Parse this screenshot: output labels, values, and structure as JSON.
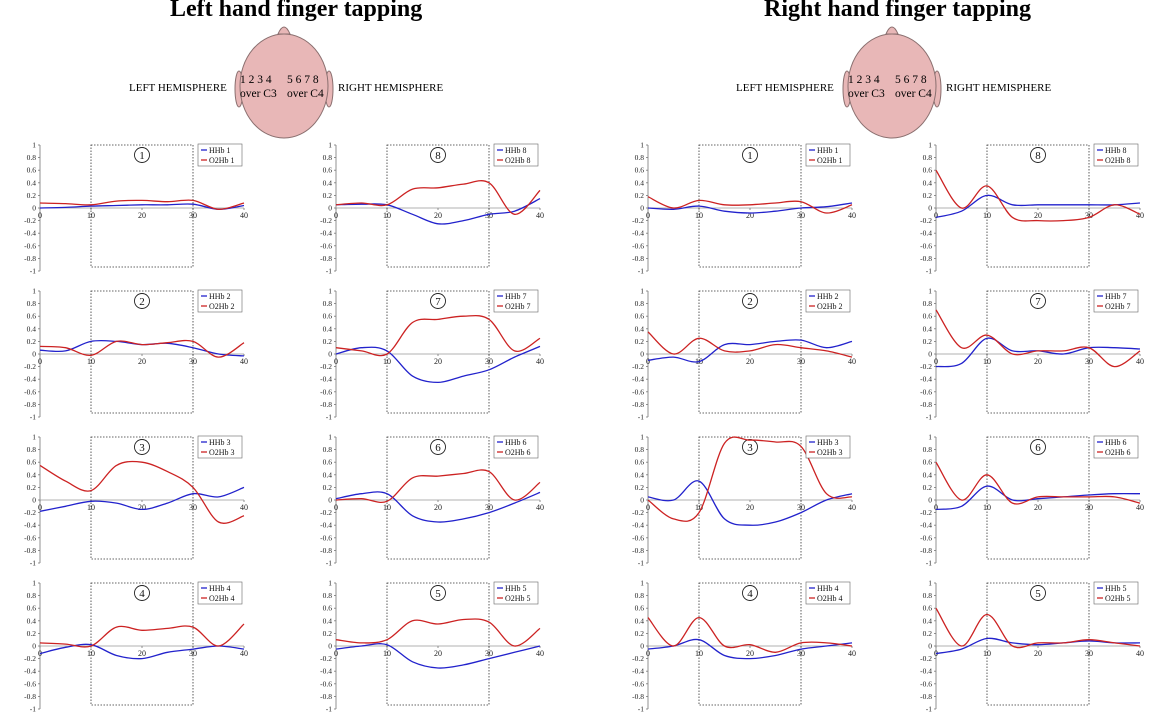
{
  "titles": [
    "Left hand finger tapping",
    "Right hand finger tapping"
  ],
  "head_diagram": {
    "left_label": "LEFT HEMISPHERE",
    "right_label": "RIGHT HEMISPHERE",
    "left_channels": "1 2 3 4",
    "right_channels": "5 6 7 8",
    "left_site": "over C3",
    "right_site": "over C4"
  },
  "colors": {
    "hhb": "#2222cc",
    "o2hb": "#cc2222",
    "head_fill": "#e8b7b7",
    "head_stroke": "#8a6f6f",
    "box": "#333333",
    "zero_line": "#999999"
  },
  "chart_data": [
    {
      "panel": "left",
      "type": "line",
      "channel": "1",
      "x": [
        0,
        5,
        10,
        15,
        20,
        25,
        30,
        35,
        40
      ],
      "xlim": [
        0,
        40
      ],
      "ylim": [
        -1,
        1
      ],
      "yticks": [
        "1",
        "0.8",
        "0.6",
        "0.4",
        "0.2",
        "0",
        "-0.2",
        "-0.4",
        "-0.6",
        "-0.8",
        "-1"
      ],
      "xticks": [
        "0",
        "10",
        "20",
        "30",
        "40"
      ],
      "shaded": [
        10,
        30
      ],
      "series": [
        {
          "name": "HHb 1",
          "values": [
            0.0,
            0.01,
            0.03,
            0.04,
            0.05,
            0.05,
            0.06,
            -0.02,
            0.04
          ]
        },
        {
          "name": "O2Hb 1",
          "values": [
            0.08,
            0.07,
            0.05,
            0.11,
            0.12,
            0.1,
            0.12,
            -0.02,
            0.08
          ]
        }
      ]
    },
    {
      "panel": "left",
      "type": "line",
      "channel": "2",
      "x": [
        0,
        5,
        10,
        15,
        20,
        25,
        30,
        35,
        40
      ],
      "xlim": [
        0,
        40
      ],
      "ylim": [
        -1,
        1
      ],
      "yticks": [
        "1",
        "0.8",
        "0.6",
        "0.4",
        "0.2",
        "0",
        "-0.2",
        "-0.4",
        "-0.6",
        "-0.8",
        "-1"
      ],
      "xticks": [
        "0",
        "10",
        "20",
        "30",
        "40"
      ],
      "shaded": [
        10,
        30
      ],
      "series": [
        {
          "name": "HHb 2",
          "values": [
            0.06,
            0.05,
            0.2,
            0.2,
            0.15,
            0.17,
            0.1,
            0.0,
            -0.03
          ]
        },
        {
          "name": "O2Hb 2",
          "values": [
            0.12,
            0.1,
            -0.02,
            0.2,
            0.15,
            0.18,
            0.2,
            -0.05,
            0.18
          ]
        }
      ]
    },
    {
      "panel": "left",
      "type": "line",
      "channel": "3",
      "x": [
        0,
        5,
        10,
        15,
        20,
        25,
        30,
        35,
        40
      ],
      "xlim": [
        0,
        40
      ],
      "ylim": [
        -1,
        1
      ],
      "yticks": [
        "1",
        "0.8",
        "0.6",
        "0.4",
        "0.2",
        "0",
        "-0.2",
        "-0.4",
        "-0.6",
        "-0.8",
        "-1"
      ],
      "xticks": [
        "0",
        "10",
        "20",
        "30",
        "40"
      ],
      "shaded": [
        10,
        30
      ],
      "series": [
        {
          "name": "HHb 3",
          "values": [
            -0.18,
            -0.1,
            -0.02,
            -0.05,
            -0.15,
            -0.05,
            0.1,
            0.05,
            0.2
          ]
        },
        {
          "name": "O2Hb 3",
          "values": [
            0.55,
            0.3,
            0.15,
            0.55,
            0.6,
            0.45,
            0.2,
            -0.35,
            -0.25
          ]
        }
      ]
    },
    {
      "panel": "left",
      "type": "line",
      "channel": "4",
      "x": [
        0,
        5,
        10,
        15,
        20,
        25,
        30,
        35,
        40
      ],
      "xlim": [
        0,
        40
      ],
      "ylim": [
        -1,
        1
      ],
      "yticks": [
        "1",
        "0.8",
        "0.6",
        "0.4",
        "0.2",
        "0",
        "-0.2",
        "-0.4",
        "-0.6",
        "-0.8",
        "-1"
      ],
      "xticks": [
        "0",
        "10",
        "20",
        "30",
        "40"
      ],
      "shaded": [
        10,
        30
      ],
      "series": [
        {
          "name": "HHb 4",
          "values": [
            -0.12,
            -0.02,
            0.02,
            -0.15,
            -0.2,
            -0.1,
            -0.05,
            0.0,
            -0.05
          ]
        },
        {
          "name": "O2Hb 4",
          "values": [
            0.05,
            0.03,
            0.0,
            0.3,
            0.25,
            0.28,
            0.3,
            0.0,
            0.35
          ]
        }
      ]
    },
    {
      "panel": "left",
      "type": "line",
      "channel": "8",
      "x": [
        0,
        5,
        10,
        15,
        20,
        25,
        30,
        35,
        40
      ],
      "xlim": [
        0,
        40
      ],
      "ylim": [
        -1,
        1
      ],
      "yticks": [
        "1",
        "0.8",
        "0.6",
        "0.4",
        "0.2",
        "0",
        "-0.2",
        "-0.4",
        "-0.6",
        "-0.8",
        "-1"
      ],
      "xticks": [
        "0",
        "10",
        "20",
        "30",
        "40"
      ],
      "shaded": [
        10,
        30
      ],
      "series": [
        {
          "name": "HHb 8",
          "values": [
            0.05,
            0.06,
            0.05,
            -0.1,
            -0.25,
            -0.2,
            -0.1,
            -0.05,
            0.15
          ]
        },
        {
          "name": "O2Hb 8",
          "values": [
            0.05,
            0.08,
            0.05,
            0.3,
            0.32,
            0.38,
            0.4,
            -0.1,
            0.28
          ]
        }
      ]
    },
    {
      "panel": "left",
      "type": "line",
      "channel": "7",
      "x": [
        0,
        5,
        10,
        15,
        20,
        25,
        30,
        35,
        40
      ],
      "xlim": [
        0,
        40
      ],
      "ylim": [
        -1,
        1
      ],
      "yticks": [
        "1",
        "0.8",
        "0.6",
        "0.4",
        "0.2",
        "0",
        "-0.2",
        "-0.4",
        "-0.6",
        "-0.8",
        "-1"
      ],
      "xticks": [
        "0",
        "10",
        "20",
        "30",
        "40"
      ],
      "shaded": [
        10,
        30
      ],
      "series": [
        {
          "name": "HHb 7",
          "values": [
            0.0,
            0.1,
            0.05,
            -0.35,
            -0.45,
            -0.35,
            -0.25,
            -0.05,
            0.12
          ]
        },
        {
          "name": "O2Hb 7",
          "values": [
            0.1,
            0.05,
            0.0,
            0.5,
            0.55,
            0.6,
            0.55,
            0.05,
            0.25
          ]
        }
      ]
    },
    {
      "panel": "left",
      "type": "line",
      "channel": "6",
      "x": [
        0,
        5,
        10,
        15,
        20,
        25,
        30,
        35,
        40
      ],
      "xlim": [
        0,
        40
      ],
      "ylim": [
        -1,
        1
      ],
      "yticks": [
        "1",
        "0.8",
        "0.6",
        "0.4",
        "0.2",
        "0",
        "-0.2",
        "-0.4",
        "-0.6",
        "-0.8",
        "-1"
      ],
      "xticks": [
        "0",
        "10",
        "20",
        "30",
        "40"
      ],
      "shaded": [
        10,
        30
      ],
      "series": [
        {
          "name": "HHb 6",
          "values": [
            0.02,
            0.1,
            0.1,
            -0.25,
            -0.35,
            -0.3,
            -0.2,
            -0.05,
            0.12
          ]
        },
        {
          "name": "O2Hb 6",
          "values": [
            0.0,
            0.02,
            -0.02,
            0.35,
            0.38,
            0.42,
            0.45,
            0.0,
            0.28
          ]
        }
      ]
    },
    {
      "panel": "left",
      "type": "line",
      "channel": "5",
      "x": [
        0,
        5,
        10,
        15,
        20,
        25,
        30,
        35,
        40
      ],
      "xlim": [
        0,
        40
      ],
      "ylim": [
        -1,
        1
      ],
      "yticks": [
        "1",
        "0.8",
        "0.6",
        "0.4",
        "0.2",
        "0",
        "-0.2",
        "-0.4",
        "-0.6",
        "-0.8",
        "-1"
      ],
      "xticks": [
        "0",
        "10",
        "20",
        "30",
        "40"
      ],
      "shaded": [
        10,
        30
      ],
      "series": [
        {
          "name": "HHb 5",
          "values": [
            -0.05,
            0.0,
            0.02,
            -0.25,
            -0.35,
            -0.3,
            -0.2,
            -0.1,
            0.0
          ]
        },
        {
          "name": "O2Hb 5",
          "values": [
            0.1,
            0.05,
            0.1,
            0.4,
            0.35,
            0.42,
            0.38,
            0.0,
            0.28
          ]
        }
      ]
    },
    {
      "panel": "right",
      "type": "line",
      "channel": "1",
      "x": [
        0,
        5,
        10,
        15,
        20,
        25,
        30,
        35,
        40
      ],
      "xlim": [
        0,
        40
      ],
      "ylim": [
        -1,
        1
      ],
      "yticks": [
        "1",
        "0.8",
        "0.6",
        "0.4",
        "0.2",
        "0",
        "-0.2",
        "-0.4",
        "-0.6",
        "-0.8",
        "-1"
      ],
      "xticks": [
        "0",
        "10",
        "20",
        "30",
        "40"
      ],
      "shaded": [
        10,
        30
      ],
      "series": [
        {
          "name": "HHb 1",
          "values": [
            0.0,
            -0.02,
            0.03,
            -0.05,
            -0.08,
            -0.05,
            0.0,
            0.02,
            0.08
          ]
        },
        {
          "name": "O2Hb 1",
          "values": [
            0.18,
            0.0,
            0.12,
            0.05,
            0.05,
            0.08,
            0.1,
            -0.08,
            0.05
          ]
        }
      ]
    },
    {
      "panel": "right",
      "type": "line",
      "channel": "2",
      "x": [
        0,
        5,
        10,
        15,
        20,
        25,
        30,
        35,
        40
      ],
      "xlim": [
        0,
        40
      ],
      "ylim": [
        -1,
        1
      ],
      "yticks": [
        "1",
        "0.8",
        "0.6",
        "0.4",
        "0.2",
        "0",
        "-0.2",
        "-0.4",
        "-0.6",
        "-0.8",
        "-1"
      ],
      "xticks": [
        "0",
        "10",
        "20",
        "30",
        "40"
      ],
      "shaded": [
        10,
        30
      ],
      "series": [
        {
          "name": "HHb 2",
          "values": [
            -0.1,
            -0.05,
            -0.12,
            0.15,
            0.15,
            0.2,
            0.22,
            0.1,
            0.2
          ]
        },
        {
          "name": "O2Hb 2",
          "values": [
            0.35,
            0.0,
            0.25,
            0.05,
            0.05,
            0.15,
            0.1,
            0.05,
            -0.05
          ]
        }
      ]
    },
    {
      "panel": "right",
      "type": "line",
      "channel": "3",
      "x": [
        0,
        5,
        10,
        15,
        20,
        25,
        30,
        35,
        40
      ],
      "xlim": [
        0,
        40
      ],
      "ylim": [
        -1,
        1
      ],
      "yticks": [
        "1",
        "0.8",
        "0.6",
        "0.4",
        "0.2",
        "0",
        "-0.2",
        "-0.4",
        "-0.6",
        "-0.8",
        "-1"
      ],
      "xticks": [
        "0",
        "10",
        "20",
        "30",
        "40"
      ],
      "shaded": [
        10,
        30
      ],
      "series": [
        {
          "name": "HHb 3",
          "values": [
            0.05,
            0.0,
            0.3,
            -0.3,
            -0.4,
            -0.35,
            -0.2,
            0.0,
            0.1
          ]
        },
        {
          "name": "O2Hb 3",
          "values": [
            0.0,
            -0.3,
            -0.2,
            0.9,
            0.95,
            0.92,
            0.85,
            0.1,
            0.05
          ]
        }
      ]
    },
    {
      "panel": "right",
      "type": "line",
      "channel": "4",
      "x": [
        0,
        5,
        10,
        15,
        20,
        25,
        30,
        35,
        40
      ],
      "xlim": [
        0,
        40
      ],
      "ylim": [
        -1,
        1
      ],
      "yticks": [
        "1",
        "0.8",
        "0.6",
        "0.4",
        "0.2",
        "0",
        "-0.2",
        "-0.4",
        "-0.6",
        "-0.8",
        "-1"
      ],
      "xticks": [
        "0",
        "10",
        "20",
        "30",
        "40"
      ],
      "shaded": [
        10,
        30
      ],
      "series": [
        {
          "name": "HHb 4",
          "values": [
            -0.05,
            0.0,
            0.1,
            -0.15,
            -0.2,
            -0.15,
            -0.05,
            0.0,
            0.05
          ]
        },
        {
          "name": "O2Hb 4",
          "values": [
            0.45,
            0.0,
            0.45,
            0.0,
            0.02,
            -0.1,
            0.05,
            0.05,
            0.0
          ]
        }
      ]
    },
    {
      "panel": "right",
      "type": "line",
      "channel": "8",
      "x": [
        0,
        5,
        10,
        15,
        20,
        25,
        30,
        35,
        40
      ],
      "xlim": [
        0,
        40
      ],
      "ylim": [
        -1,
        1
      ],
      "yticks": [
        "1",
        "0.8",
        "0.6",
        "0.4",
        "0.2",
        "0",
        "-0.2",
        "-0.4",
        "-0.6",
        "-0.8",
        "-1"
      ],
      "xticks": [
        "0",
        "10",
        "20",
        "30",
        "40"
      ],
      "shaded": [
        10,
        30
      ],
      "series": [
        {
          "name": "HHb 8",
          "values": [
            -0.15,
            -0.05,
            0.2,
            0.05,
            0.05,
            0.05,
            0.05,
            0.05,
            0.08
          ]
        },
        {
          "name": "O2Hb 8",
          "values": [
            0.6,
            0.0,
            0.35,
            -0.15,
            -0.2,
            -0.2,
            -0.15,
            0.05,
            -0.1
          ]
        }
      ]
    },
    {
      "panel": "right",
      "type": "line",
      "channel": "7",
      "x": [
        0,
        5,
        10,
        15,
        20,
        25,
        30,
        35,
        40
      ],
      "xlim": [
        0,
        40
      ],
      "ylim": [
        -1,
        1
      ],
      "yticks": [
        "1",
        "0.8",
        "0.6",
        "0.4",
        "0.2",
        "0",
        "-0.2",
        "-0.4",
        "-0.6",
        "-0.8",
        "-1"
      ],
      "xticks": [
        "0",
        "10",
        "20",
        "30",
        "40"
      ],
      "shaded": [
        10,
        30
      ],
      "series": [
        {
          "name": "HHb 7",
          "values": [
            -0.2,
            -0.15,
            0.25,
            0.05,
            0.05,
            0.0,
            0.1,
            0.1,
            0.08
          ]
        },
        {
          "name": "O2Hb 7",
          "values": [
            0.7,
            0.1,
            0.3,
            0.0,
            0.05,
            0.05,
            0.1,
            -0.2,
            0.05
          ]
        }
      ]
    },
    {
      "panel": "right",
      "type": "line",
      "channel": "6",
      "x": [
        0,
        5,
        10,
        15,
        20,
        25,
        30,
        35,
        40
      ],
      "xlim": [
        0,
        40
      ],
      "ylim": [
        -1,
        1
      ],
      "yticks": [
        "1",
        "0.8",
        "0.6",
        "0.4",
        "0.2",
        "0",
        "-0.2",
        "-0.4",
        "-0.6",
        "-0.8",
        "-1"
      ],
      "xticks": [
        "0",
        "10",
        "20",
        "30",
        "40"
      ],
      "shaded": [
        10,
        30
      ],
      "series": [
        {
          "name": "HHb 6",
          "values": [
            -0.15,
            -0.1,
            0.22,
            0.0,
            0.02,
            0.05,
            0.08,
            0.1,
            0.1
          ]
        },
        {
          "name": "O2Hb 6",
          "values": [
            0.6,
            0.0,
            0.4,
            -0.05,
            0.05,
            0.05,
            0.05,
            0.05,
            -0.05
          ]
        }
      ]
    },
    {
      "panel": "right",
      "type": "line",
      "channel": "5",
      "x": [
        0,
        5,
        10,
        15,
        20,
        25,
        30,
        35,
        40
      ],
      "xlim": [
        0,
        40
      ],
      "ylim": [
        -1,
        1
      ],
      "yticks": [
        "1",
        "0.8",
        "0.6",
        "0.4",
        "0.2",
        "0",
        "-0.2",
        "-0.4",
        "-0.6",
        "-0.8",
        "-1"
      ],
      "xticks": [
        "0",
        "10",
        "20",
        "30",
        "40"
      ],
      "shaded": [
        10,
        30
      ],
      "series": [
        {
          "name": "HHb 5",
          "values": [
            -0.12,
            -0.05,
            0.12,
            0.05,
            0.02,
            0.05,
            0.08,
            0.05,
            0.05
          ]
        },
        {
          "name": "O2Hb 5",
          "values": [
            0.6,
            0.0,
            0.5,
            0.0,
            0.05,
            0.05,
            0.1,
            0.05,
            0.0
          ]
        }
      ]
    }
  ]
}
